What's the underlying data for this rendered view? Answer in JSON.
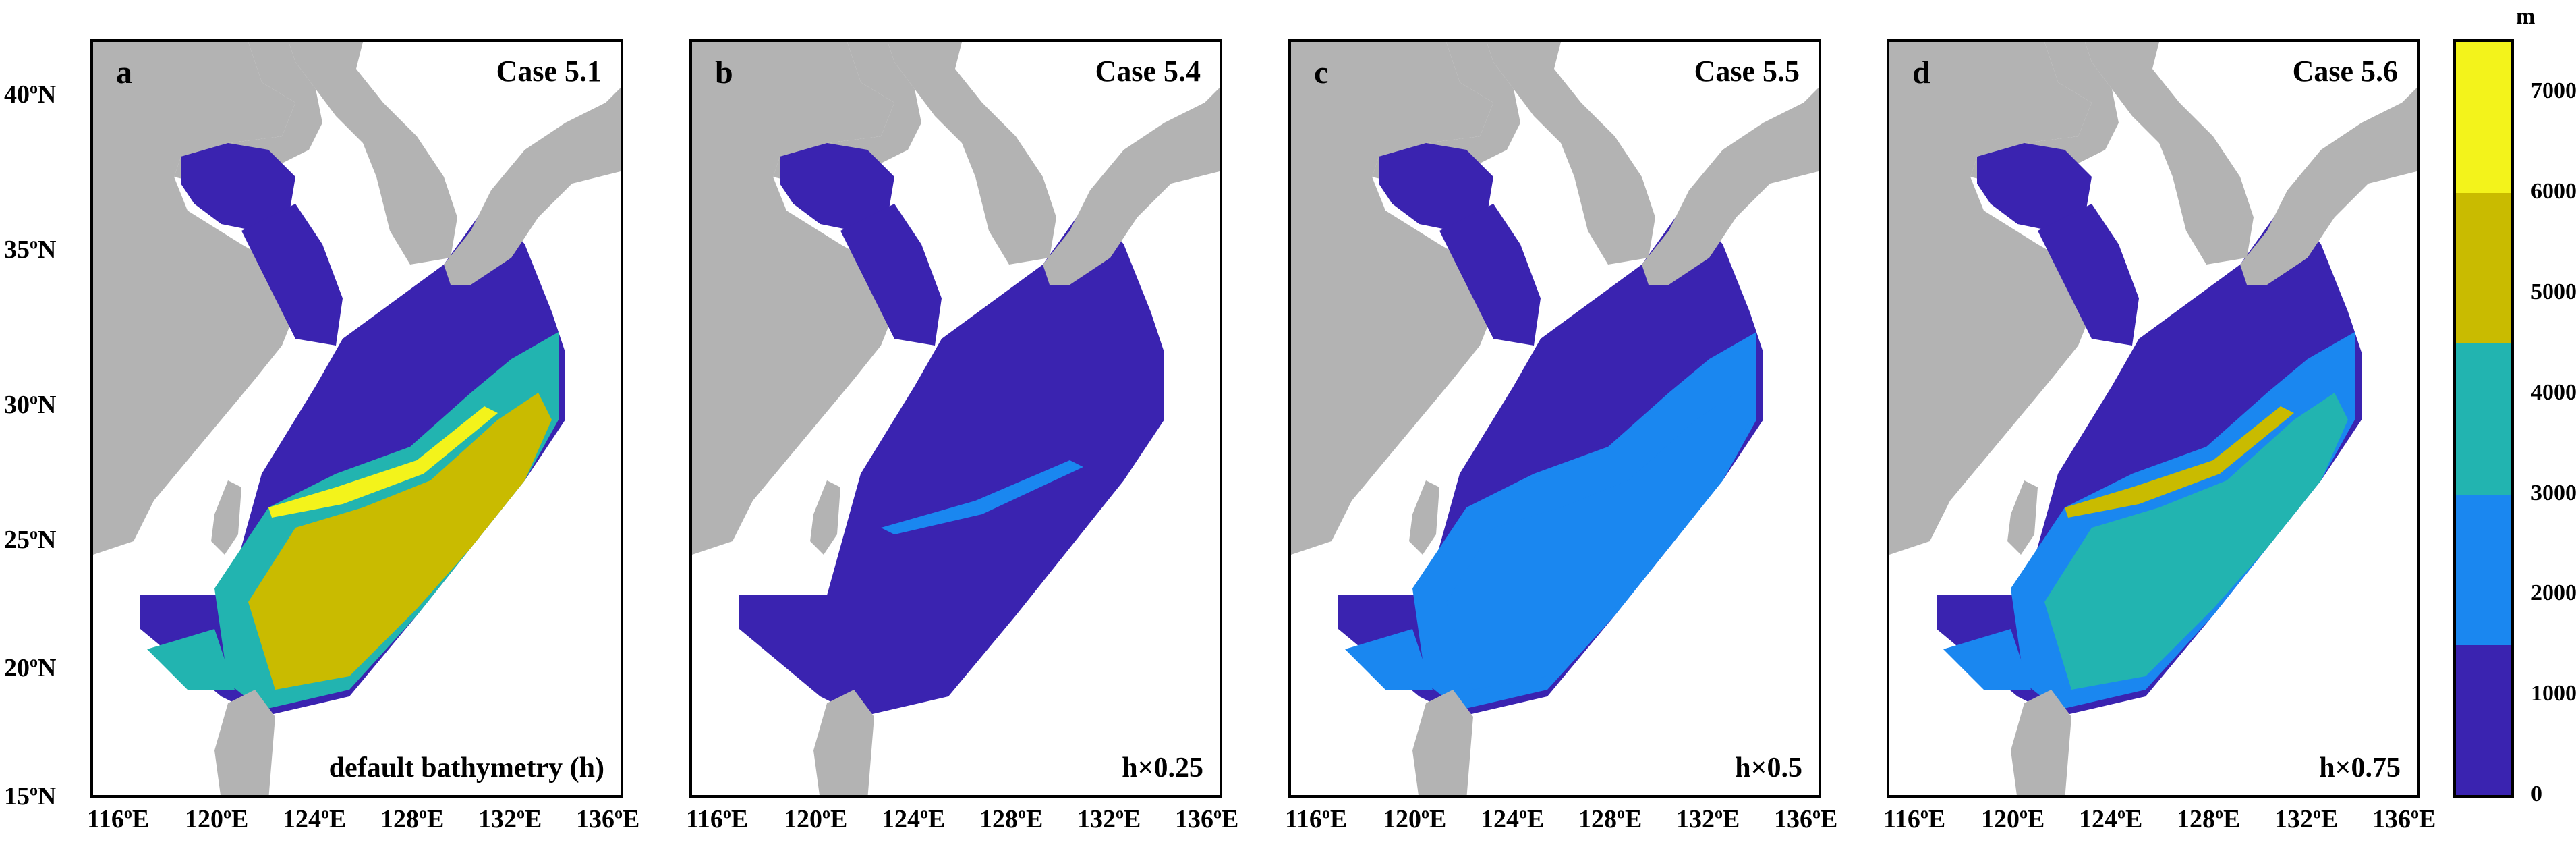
{
  "y_ticks": [
    "40",
    "35",
    "30",
    "25",
    "20",
    "15"
  ],
  "y_suffix": "N",
  "x_ticks": [
    "116",
    "120",
    "124",
    "128",
    "132",
    "136"
  ],
  "x_suffix": "E",
  "degree_sign": "o",
  "panels": [
    {
      "letter": "a",
      "case": "Case 5.1",
      "note": "default bathymetry (h)",
      "scale": 1.0
    },
    {
      "letter": "b",
      "case": "Case 5.4",
      "note": "h×0.25",
      "scale": 0.25
    },
    {
      "letter": "c",
      "case": "Case 5.5",
      "note": "h×0.5",
      "scale": 0.5
    },
    {
      "letter": "d",
      "case": "Case 5.6",
      "note": "h×0.75",
      "scale": 0.75
    }
  ],
  "colorbar": {
    "unit": "m",
    "ticks": [
      "7000",
      "6000",
      "5000",
      "4000",
      "3000",
      "2000",
      "1000",
      "0"
    ],
    "colors": [
      "#3a23b0",
      "#1a87f0",
      "#22b4b0",
      "#c9bb00",
      "#f3f31b"
    ]
  },
  "colors": {
    "land": "#b3b3b3",
    "background": "#ffffff",
    "frame": "#000000"
  }
}
